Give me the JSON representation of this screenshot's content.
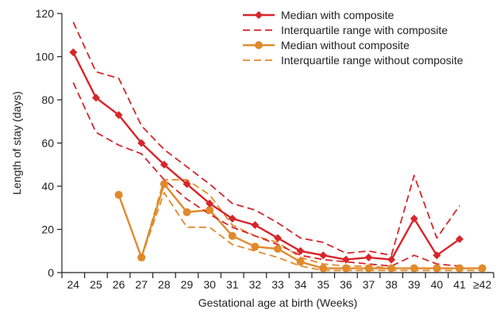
{
  "chart_data": {
    "type": "line",
    "title": "",
    "xlabel": "Gestational age at birth (Weeks)",
    "ylabel": "Length of stay (days)",
    "categories": [
      "24",
      "25",
      "26",
      "27",
      "28",
      "29",
      "30",
      "31",
      "32",
      "33",
      "34",
      "35",
      "36",
      "37",
      "38",
      "39",
      "40",
      "41",
      "≥42"
    ],
    "ylim": [
      0,
      120
    ],
    "yticks": [
      0,
      20,
      40,
      60,
      80,
      100,
      120
    ],
    "grid": false,
    "legend_position": "top-right",
    "colors": {
      "with": "#d7262b",
      "without": "#e08a2c"
    },
    "series": [
      {
        "name": "Median with composite",
        "style": "solid",
        "marker": "diamond",
        "color": "#d7262b",
        "values": [
          102,
          81,
          73,
          60,
          50,
          41,
          32,
          25,
          22,
          16,
          10,
          8,
          6,
          7,
          6,
          25,
          8,
          15.5,
          null
        ]
      },
      {
        "name": "Interquartile range with composite",
        "style": "dashed",
        "marker": "none",
        "color": "#d7262b",
        "lines": [
          [
            116,
            93,
            90,
            68,
            57,
            49,
            41,
            32,
            29,
            23,
            16,
            14,
            9,
            10,
            8,
            45,
            16,
            31,
            null
          ],
          [
            88,
            65,
            59,
            55,
            43,
            34,
            27,
            21,
            17,
            13,
            8,
            6,
            5,
            4,
            3,
            8,
            4,
            3,
            null
          ]
        ]
      },
      {
        "name": "Median without composite",
        "style": "solid",
        "marker": "circle",
        "color": "#e08a2c",
        "values": [
          null,
          null,
          36,
          7,
          41,
          28,
          29,
          17,
          12,
          11,
          5,
          2,
          2,
          2,
          2,
          2,
          2,
          2,
          2
        ]
      },
      {
        "name": "Interquartile range without composite",
        "style": "dashed",
        "marker": "none",
        "color": "#e08a2c",
        "lines": [
          [
            null,
            null,
            null,
            7,
            43,
            43,
            36,
            22,
            17,
            14,
            7,
            4,
            3,
            3,
            2,
            2,
            2,
            2,
            2
          ],
          [
            null,
            null,
            null,
            7,
            37,
            21,
            21,
            13,
            10,
            7,
            3,
            1,
            1,
            1,
            1,
            1,
            1,
            1,
            1
          ]
        ]
      }
    ]
  }
}
